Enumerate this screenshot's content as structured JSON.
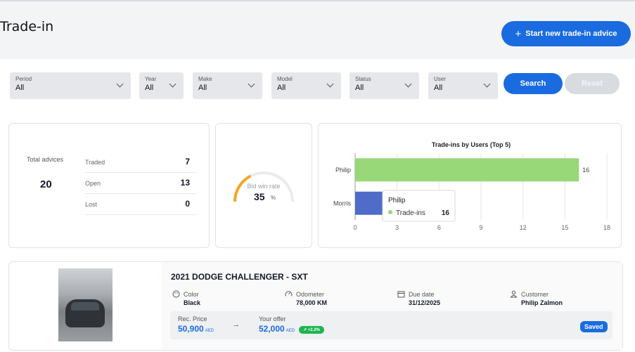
{
  "header": {
    "title": "Trade-in",
    "start_button": "Start new trade-in advice",
    "plus_icon": "+"
  },
  "filters": [
    {
      "label": "Period",
      "value": "All"
    },
    {
      "label": "Year",
      "value": "All"
    },
    {
      "label": "Make",
      "value": "All"
    },
    {
      "label": "Model",
      "value": "All"
    },
    {
      "label": "Status",
      "value": "All"
    },
    {
      "label": "User",
      "value": "All"
    }
  ],
  "actions": {
    "search": "Search",
    "reset": "Reset"
  },
  "summary": {
    "total_label": "Total advices",
    "total_value": "20",
    "rows": [
      {
        "label": "Traded",
        "value": "7"
      },
      {
        "label": "Open",
        "value": "13"
      },
      {
        "label": "Lost",
        "value": "0"
      }
    ]
  },
  "gauge": {
    "label": "Bid win rate",
    "value": "35",
    "unit": "%",
    "fraction": 0.35,
    "color": "#f5a623"
  },
  "chart_data": {
    "type": "bar",
    "orientation": "horizontal",
    "title": "Trade-ins by Users (Top 5)",
    "categories": [
      "Philip",
      "Morris"
    ],
    "series": [
      {
        "name": "Trade-ins",
        "values": [
          16,
          2
        ]
      }
    ],
    "data_labels": [
      "16",
      ""
    ],
    "xticks": [
      "0",
      "3",
      "6",
      "9",
      "12",
      "15",
      "18"
    ],
    "xlim": [
      0,
      18
    ],
    "grid": true,
    "colors": [
      "#98d879",
      "#4f6cc8"
    ],
    "tooltip": {
      "title": "Philip",
      "series": "Trade-ins",
      "value": "16"
    }
  },
  "vehicle": {
    "title": "2021 DODGE CHALLENGER - SXT",
    "image_icon": "car-photo",
    "specs": [
      {
        "icon": "palette-icon",
        "label": "Color",
        "value": "Black"
      },
      {
        "icon": "speedometer-icon",
        "label": "Odometer",
        "value": "78,000 KM"
      },
      {
        "icon": "calendar-icon",
        "label": "Due date",
        "value": "31/12/2025"
      },
      {
        "icon": "person-icon",
        "label": "Customer",
        "value": "Philip Zalmon"
      }
    ],
    "rec_price_label": "Rec. Price",
    "rec_price_value": "50,900",
    "currency": "AED",
    "your_offer_label": "Your offer",
    "your_offer_value": "52,000",
    "change_badge": "+2.2%",
    "status_badge": "Saved",
    "arrow": "→"
  }
}
